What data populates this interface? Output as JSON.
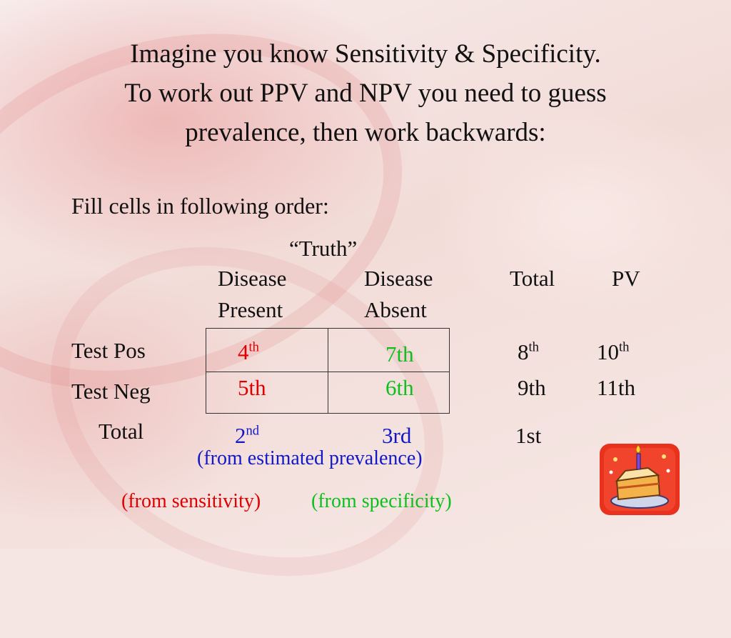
{
  "heading": {
    "line1": "Imagine you know Sensitivity & Specificity.",
    "line2": "To work out PPV and NPV you need to guess",
    "line3": "prevalence, then work backwards:"
  },
  "instruction": "Fill cells in following order:",
  "table": {
    "super_header": "“Truth”",
    "col_headers": {
      "disease_present_1": "Disease",
      "disease_present_2": "Present",
      "disease_absent_1": "Disease",
      "disease_absent_2": "Absent",
      "total": "Total",
      "pv": "PV"
    },
    "row_labels": {
      "test_pos": "Test Pos",
      "test_neg": "Test Neg",
      "total": "Total"
    },
    "cells": {
      "pos_present": {
        "num": "4",
        "sup": "th"
      },
      "pos_absent": "7th",
      "pos_total": {
        "num": "8",
        "sup": "th"
      },
      "pos_pv": {
        "num": "10",
        "sup": "th"
      },
      "neg_present": "5th",
      "neg_absent": "6th",
      "neg_total": "9th",
      "neg_pv": "11th",
      "total_present": {
        "num": "2",
        "sup": "nd"
      },
      "total_absent": "3rd",
      "total_total": "1st"
    }
  },
  "notes": {
    "prevalence": "(from estimated prevalence)",
    "sensitivity": "(from sensitivity)",
    "specificity": "(from specificity)"
  },
  "colors": {
    "red": "#e00000",
    "green": "#0fbf1f",
    "blue": "#1218c8"
  },
  "decoration": {
    "icon": "birthday-cake-icon"
  }
}
